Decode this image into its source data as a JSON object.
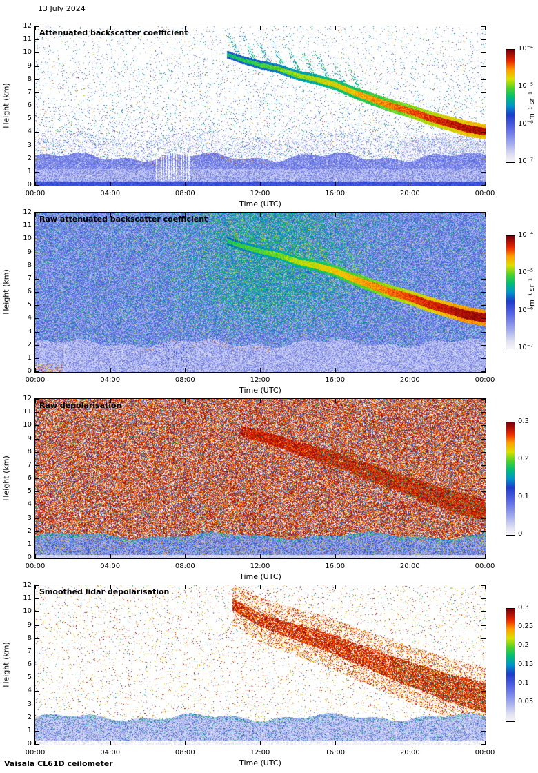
{
  "page": {
    "date_label": "13 July 2024",
    "footer": "Vaisala CL61D ceilometer"
  },
  "colormap": {
    "stops": [
      [
        0.0,
        [
          245,
          245,
          248
        ]
      ],
      [
        0.06,
        [
          225,
          226,
          242
        ]
      ],
      [
        0.15,
        [
          170,
          178,
          238
        ]
      ],
      [
        0.3,
        [
          90,
          105,
          228
        ]
      ],
      [
        0.42,
        [
          30,
          60,
          200
        ]
      ],
      [
        0.5,
        [
          0,
          150,
          200
        ]
      ],
      [
        0.58,
        [
          0,
          190,
          120
        ]
      ],
      [
        0.66,
        [
          80,
          210,
          40
        ]
      ],
      [
        0.74,
        [
          220,
          225,
          0
        ]
      ],
      [
        0.82,
        [
          255,
          160,
          0
        ]
      ],
      [
        0.9,
        [
          235,
          40,
          0
        ]
      ],
      [
        1.0,
        [
          120,
          0,
          10
        ]
      ]
    ]
  },
  "chart_data": [
    {
      "type": "heatmap",
      "style": "bs_smooth",
      "title": "Attenuated backscatter coefficient",
      "xlabel": "Time (UTC)",
      "ylabel": "Height (km)",
      "x_ticks": [
        "00:00",
        "04:00",
        "08:00",
        "12:00",
        "16:00",
        "20:00",
        "00:00"
      ],
      "y_ticks": [
        "0",
        "1",
        "2",
        "3",
        "4",
        "5",
        "6",
        "7",
        "8",
        "9",
        "10",
        "11",
        "12"
      ],
      "xlim_hours": [
        0,
        24
      ],
      "ylim_km": [
        0,
        12
      ],
      "colorbar": {
        "scale": "log",
        "range": [
          "1e-7",
          "1e-4"
        ],
        "unit": "m⁻¹ sr⁻¹",
        "ticks": [
          {
            "pos": 1,
            "label": "10⁻⁴"
          },
          {
            "pos": 0.6667,
            "label": "10⁻⁵"
          },
          {
            "pos": 0.3333,
            "label": "10⁻⁶"
          },
          {
            "pos": 0,
            "label": "10⁻⁷"
          }
        ]
      },
      "features": {
        "seed": 101,
        "boundary_layer_top_km": 2.15,
        "rain_gap_hours": [
          6.4,
          8.3
        ],
        "plume_track": [
          [
            10.2,
            9.9
          ],
          [
            11,
            9.5
          ],
          [
            12,
            9.1
          ],
          [
            13,
            8.8
          ],
          [
            14,
            8.3
          ],
          [
            15,
            8.0
          ],
          [
            16,
            7.6
          ],
          [
            17,
            7.0
          ],
          [
            18,
            6.5
          ],
          [
            19,
            6.0
          ],
          [
            20,
            5.6
          ],
          [
            21,
            5.1
          ],
          [
            22,
            4.7
          ],
          [
            23,
            4.3
          ],
          [
            24,
            4.05
          ]
        ]
      }
    },
    {
      "type": "heatmap",
      "style": "bs_raw",
      "title": "Raw attenuated backscatter coefficient",
      "xlabel": "Time (UTC)",
      "ylabel": "Height (km)",
      "x_ticks": [
        "00:00",
        "04:00",
        "08:00",
        "12:00",
        "16:00",
        "20:00",
        "00:00"
      ],
      "y_ticks": [
        "0",
        "1",
        "2",
        "3",
        "4",
        "5",
        "6",
        "7",
        "8",
        "9",
        "10",
        "11",
        "12"
      ],
      "xlim_hours": [
        0,
        24
      ],
      "ylim_km": [
        0,
        12
      ],
      "colorbar": {
        "scale": "log",
        "range": [
          "1e-7",
          "1e-4"
        ],
        "unit": "m⁻¹ sr⁻¹",
        "ticks": [
          {
            "pos": 1,
            "label": "10⁻⁴"
          },
          {
            "pos": 0.6667,
            "label": "10⁻⁵"
          },
          {
            "pos": 0.3333,
            "label": "10⁻⁶"
          },
          {
            "pos": 0,
            "label": "10⁻⁷"
          }
        ]
      },
      "features": {
        "seed": 202,
        "boundary_layer_top_km": 2.15,
        "rain_gap_hours": [
          6.4,
          8.3
        ],
        "solar_noise_peak_hour": 12.5,
        "plume_track": [
          [
            10.2,
            9.9
          ],
          [
            11,
            9.5
          ],
          [
            12,
            9.1
          ],
          [
            13,
            8.8
          ],
          [
            14,
            8.3
          ],
          [
            15,
            8.0
          ],
          [
            16,
            7.6
          ],
          [
            17,
            7.0
          ],
          [
            18,
            6.5
          ],
          [
            19,
            6.0
          ],
          [
            20,
            5.6
          ],
          [
            21,
            5.1
          ],
          [
            22,
            4.7
          ],
          [
            23,
            4.3
          ],
          [
            24,
            4.05
          ]
        ]
      }
    },
    {
      "type": "heatmap",
      "style": "depol_raw",
      "title": "Raw depolarisation",
      "xlabel": "Time (UTC)",
      "ylabel": "Height (km)",
      "x_ticks": [
        "00:00",
        "04:00",
        "08:00",
        "12:00",
        "16:00",
        "20:00",
        "00:00"
      ],
      "y_ticks": [
        "0",
        "1",
        "2",
        "3",
        "4",
        "5",
        "6",
        "7",
        "8",
        "9",
        "10",
        "11",
        "12"
      ],
      "xlim_hours": [
        0,
        24
      ],
      "ylim_km": [
        0,
        12
      ],
      "colorbar": {
        "scale": "linear",
        "range": [
          0,
          0.3
        ],
        "unit": "",
        "ticks": [
          {
            "pos": 1,
            "label": "0.3"
          },
          {
            "pos": 0.6667,
            "label": "0.2"
          },
          {
            "pos": 0.3333,
            "label": "0.1"
          },
          {
            "pos": 0,
            "label": "0"
          }
        ]
      },
      "features": {
        "seed": 303,
        "boundary_layer_top_km": 1.7,
        "plume_track": [
          [
            11.0,
            9.6
          ],
          [
            12,
            9.2
          ],
          [
            13,
            8.8
          ],
          [
            14,
            8.3
          ],
          [
            15,
            7.9
          ],
          [
            16,
            7.5
          ],
          [
            17,
            6.9
          ],
          [
            18,
            6.4
          ],
          [
            19,
            5.9
          ],
          [
            20,
            5.4
          ],
          [
            21,
            4.9
          ],
          [
            22,
            4.4
          ],
          [
            23,
            4.0
          ],
          [
            24,
            3.6
          ]
        ]
      }
    },
    {
      "type": "heatmap",
      "style": "depol_smooth",
      "title": "Smoothed lidar depolarisation",
      "xlabel": "Time (UTC)",
      "ylabel": "Height (km)",
      "x_ticks": [
        "00:00",
        "04:00",
        "08:00",
        "12:00",
        "16:00",
        "20:00",
        "00:00"
      ],
      "y_ticks": [
        "0",
        "1",
        "2",
        "3",
        "4",
        "5",
        "6",
        "7",
        "8",
        "9",
        "10",
        "11",
        "12"
      ],
      "xlim_hours": [
        0,
        24
      ],
      "ylim_km": [
        0,
        12
      ],
      "colorbar": {
        "scale": "linear",
        "range": [
          0,
          0.3
        ],
        "unit": "",
        "ticks": [
          {
            "pos": 1,
            "label": "0.3"
          },
          {
            "pos": 0.8333,
            "label": "0.25"
          },
          {
            "pos": 0.6667,
            "label": "0.2"
          },
          {
            "pos": 0.5,
            "label": "0.15"
          },
          {
            "pos": 0.3333,
            "label": "0.1"
          },
          {
            "pos": 0.1667,
            "label": "0.05"
          }
        ]
      },
      "features": {
        "seed": 404,
        "boundary_layer_top_km": 2.05,
        "plume_track": [
          [
            10.5,
            10.6
          ],
          [
            11.5,
            9.8
          ],
          [
            12,
            9.4
          ],
          [
            13,
            8.9
          ],
          [
            14,
            8.4
          ],
          [
            15,
            8.0
          ],
          [
            16,
            7.5
          ],
          [
            17,
            6.9
          ],
          [
            18,
            6.4
          ],
          [
            19,
            5.8
          ],
          [
            20,
            5.3
          ],
          [
            21,
            4.8
          ],
          [
            22,
            4.3
          ],
          [
            23,
            3.9
          ],
          [
            24,
            3.5
          ]
        ]
      }
    }
  ]
}
